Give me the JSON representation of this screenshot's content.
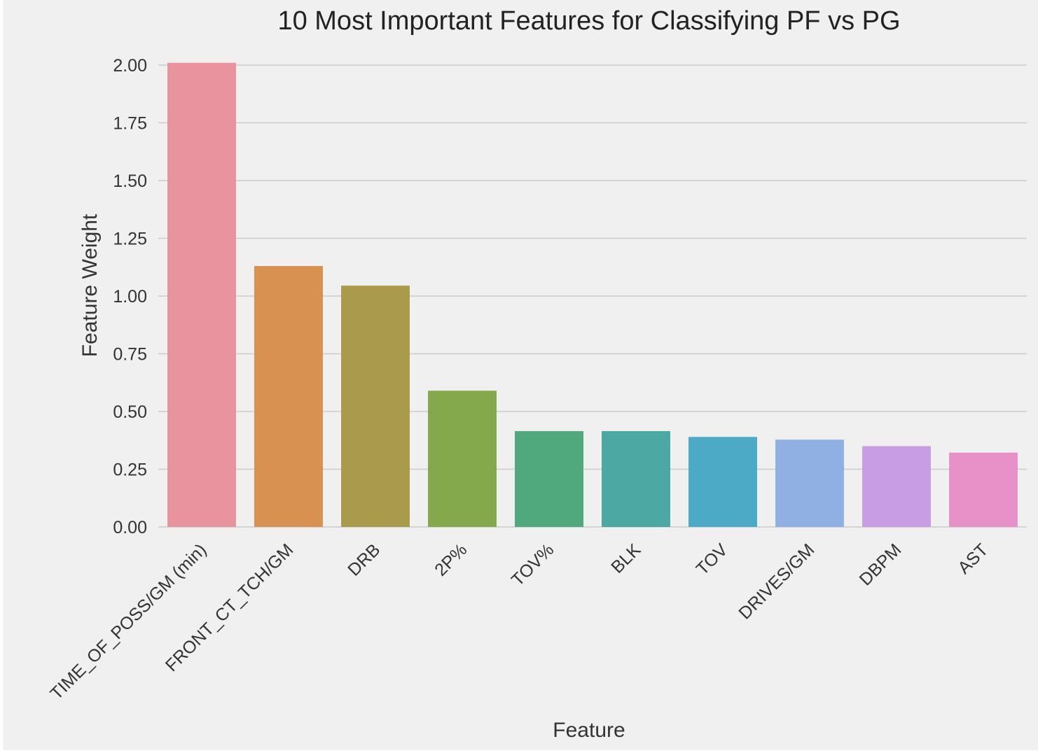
{
  "chart_data": {
    "type": "bar",
    "title": "10 Most Important Features for Classifying PF vs PG",
    "xlabel": "Feature",
    "ylabel": "Feature Weight",
    "ylim": [
      0,
      2.0
    ],
    "yticks": [
      "0.00",
      "0.25",
      "0.50",
      "0.75",
      "1.00",
      "1.25",
      "1.50",
      "1.75",
      "2.00"
    ],
    "grid": true,
    "categories": [
      "TIME_OF_POSS/GM (min)",
      "FRONT_CT_TCH/GM",
      "DRB",
      "2P%",
      "TOV%",
      "BLK",
      "TOV",
      "DRIVES/GM",
      "DBPM",
      "AST"
    ],
    "values": [
      2.01,
      1.13,
      1.045,
      0.59,
      0.415,
      0.415,
      0.39,
      0.378,
      0.35,
      0.322
    ],
    "colors": [
      "#e8939e",
      "#d99152",
      "#aa9a4c",
      "#84a84c",
      "#4fa97c",
      "#4ca8a2",
      "#4daac6",
      "#90b0e3",
      "#c99de3",
      "#e890c8"
    ]
  }
}
